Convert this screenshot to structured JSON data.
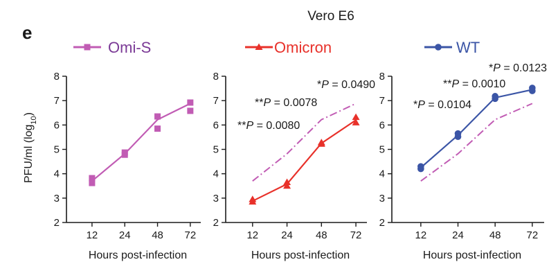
{
  "figure": {
    "panel_letter": "e",
    "title": "Vero E6",
    "ylabel_main": "PFU/ml (log",
    "ylabel_sub": "10",
    "ylabel_close": ")"
  },
  "colors": {
    "omi_s": "#c15cb4",
    "omicron": "#e8312a",
    "wt": "#3b55a6",
    "omi_s_text": "#7b3a96",
    "axis": "#1a1a1a"
  },
  "legend": [
    {
      "name": "Omi-S",
      "marker": "square",
      "color": "#c15cb4",
      "text_color": "#7b3a96"
    },
    {
      "name": "Omicron",
      "marker": "triangle",
      "color": "#e8312a",
      "text_color": "#e8312a"
    },
    {
      "name": "WT",
      "marker": "circle",
      "color": "#3b55a6",
      "text_color": "#3b55a6"
    }
  ],
  "chart_data": [
    {
      "type": "line",
      "x": [
        12,
        24,
        48,
        72
      ],
      "categories": [
        "12",
        "24",
        "48",
        "72"
      ],
      "xlabel": "Hours post-infection",
      "ylabel": "PFU/ml (log10)",
      "ylim": [
        2,
        8
      ],
      "yticks": [
        2,
        3,
        4,
        5,
        6,
        7,
        8
      ],
      "grid": false,
      "series": [
        {
          "name": "Omi-S",
          "marker": "square",
          "color": "#c15cb4",
          "style": "solid",
          "mean": [
            3.7,
            4.82,
            6.22,
            6.88
          ],
          "replicates": [
            [
              3.82,
              3.62
            ],
            [
              4.87,
              4.78
            ],
            [
              6.35,
              5.85
            ],
            [
              6.92,
              6.58
            ]
          ]
        }
      ],
      "annotations": []
    },
    {
      "type": "line",
      "x": [
        12,
        24,
        48,
        72
      ],
      "categories": [
        "12",
        "24",
        "48",
        "72"
      ],
      "xlabel": "Hours post-infection",
      "ylabel": "",
      "ylim": [
        2,
        8
      ],
      "yticks": [
        2,
        3,
        4,
        5,
        6,
        7,
        8
      ],
      "grid": false,
      "series": [
        {
          "name": "Omicron",
          "marker": "triangle",
          "color": "#e8312a",
          "style": "solid",
          "mean": [
            2.88,
            3.58,
            5.25,
            6.2
          ],
          "replicates": [
            [
              2.95,
              2.85
            ],
            [
              3.65,
              3.5
            ],
            [
              5.28,
              5.22
            ],
            [
              6.32,
              6.1
            ]
          ]
        },
        {
          "name": "Omi-S",
          "marker": "none",
          "color": "#c15cb4",
          "style": "dashdot",
          "mean": [
            3.7,
            4.82,
            6.22,
            6.88
          ],
          "replicates": []
        }
      ],
      "annotations": [
        {
          "stars": "**",
          "p": "P",
          "value": " = 0.0080",
          "x": 12,
          "y": 4.05
        },
        {
          "stars": "**",
          "p": "P",
          "value": " = 0.0078",
          "x": 24,
          "y": 5.0
        },
        {
          "stars": "*",
          "p": "P",
          "value": " = 0.0490",
          "x": 48,
          "y": 6.58
        }
      ]
    },
    {
      "type": "line",
      "x": [
        12,
        24,
        48,
        72
      ],
      "categories": [
        "12",
        "24",
        "48",
        "72"
      ],
      "xlabel": "Hours post-infection",
      "ylabel": "",
      "ylim": [
        2,
        8
      ],
      "yticks": [
        2,
        3,
        4,
        5,
        6,
        7,
        8
      ],
      "grid": false,
      "series": [
        {
          "name": "WT",
          "marker": "circle",
          "color": "#3b55a6",
          "style": "solid",
          "mean": [
            4.25,
            5.58,
            7.12,
            7.45
          ],
          "replicates": [
            [
              4.3,
              4.2
            ],
            [
              5.65,
              5.52
            ],
            [
              7.18,
              7.08
            ],
            [
              7.52,
              7.4
            ]
          ]
        },
        {
          "name": "Omi-S",
          "marker": "none",
          "color": "#c15cb4",
          "style": "dashdot",
          "mean": [
            3.7,
            4.82,
            6.22,
            6.88
          ],
          "replicates": []
        }
      ],
      "annotations": [
        {
          "stars": "*",
          "p": "P",
          "value": " = 0.0104",
          "x": 12,
          "y": 3.97
        },
        {
          "stars": "**",
          "p": "P",
          "value": " = 0.0010",
          "x": 24,
          "y": 4.4
        },
        {
          "stars": "*",
          "p": "P",
          "value": " = 0.0123",
          "x": 48,
          "y": 4.85
        }
      ]
    }
  ]
}
